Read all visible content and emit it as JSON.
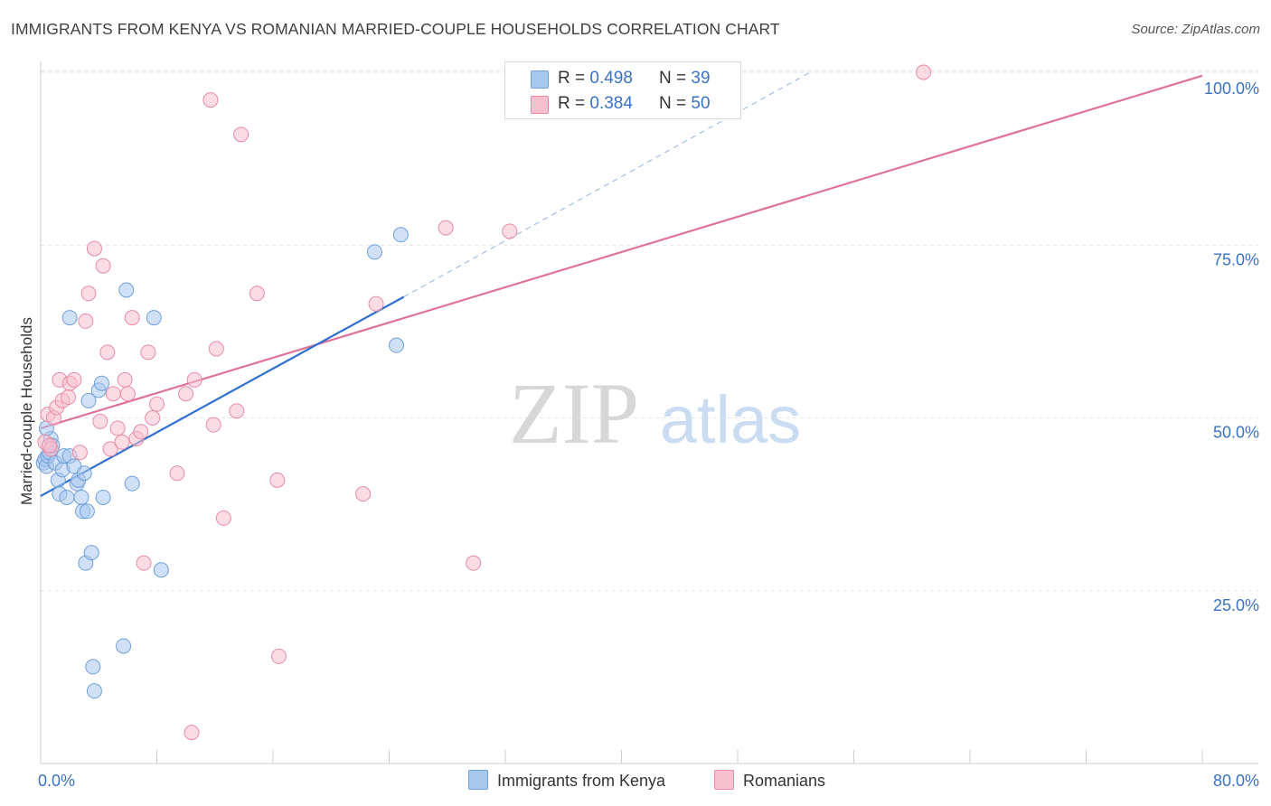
{
  "title": "IMMIGRANTS FROM KENYA VS ROMANIAN MARRIED-COUPLE HOUSEHOLDS CORRELATION CHART",
  "source": "Source: ZipAtlas.com",
  "watermark": {
    "zip": "ZIP",
    "atlas": "atlas"
  },
  "legend_top": [
    {
      "r_label": "R =",
      "r_value": "0.498",
      "n_label": "N =",
      "n_value": "39",
      "color": "#a9c8f0",
      "border": "#6f9fd8"
    },
    {
      "r_label": "R =",
      "r_value": "0.384",
      "n_label": "N =",
      "n_value": "50",
      "color": "#f7c0cf",
      "border": "#e88aa5"
    }
  ],
  "legend_bottom": [
    {
      "label": "Immigrants from Kenya",
      "color": "#a9c8f0",
      "border": "#6f9fd8"
    },
    {
      "label": "Romanians",
      "color": "#f7c0cf",
      "border": "#e88aa5"
    }
  ],
  "chart_data": {
    "type": "scatter",
    "title": "IMMIGRANTS FROM KENYA VS ROMANIAN MARRIED-COUPLE HOUSEHOLDS CORRELATION CHART",
    "xlabel": "",
    "ylabel": "Married-couple Households",
    "xlim": [
      0,
      80
    ],
    "ylim": [
      0,
      100
    ],
    "x_tick_labels": [
      "0.0%",
      "80.0%"
    ],
    "y_ticks": [
      25,
      50,
      75,
      100
    ],
    "y_tick_labels": [
      "25.0%",
      "50.0%",
      "75.0%",
      "100.0%"
    ],
    "grid": "horizontal dashed",
    "legend": "bottom-center",
    "series": [
      {
        "name": "Immigrants from Kenya",
        "color": "#6f9fd8",
        "fill": "#a9c8f0",
        "line_color": "#2e6fd0",
        "trend": {
          "x0": 0,
          "y0": 38.7,
          "x1": 25,
          "y1": 67.5,
          "dashed_to_x": 53,
          "dashed_to_y": 100
        },
        "points": [
          [
            0.2,
            43.5
          ],
          [
            0.3,
            44.0
          ],
          [
            0.4,
            43.0
          ],
          [
            0.5,
            44.5
          ],
          [
            0.6,
            45.0
          ],
          [
            0.7,
            47.0
          ],
          [
            0.8,
            46.0
          ],
          [
            1.0,
            43.5
          ],
          [
            1.2,
            41.0
          ],
          [
            1.3,
            39.0
          ],
          [
            1.5,
            42.5
          ],
          [
            1.6,
            44.5
          ],
          [
            1.8,
            38.5
          ],
          [
            2.0,
            44.5
          ],
          [
            2.0,
            64.5
          ],
          [
            2.3,
            43.0
          ],
          [
            2.5,
            40.5
          ],
          [
            2.6,
            41.0
          ],
          [
            2.8,
            38.5
          ],
          [
            2.9,
            36.5
          ],
          [
            3.0,
            42.0
          ],
          [
            3.1,
            29.0
          ],
          [
            3.2,
            36.5
          ],
          [
            3.3,
            52.5
          ],
          [
            3.5,
            30.5
          ],
          [
            3.6,
            14.0
          ],
          [
            3.7,
            10.5
          ],
          [
            4.0,
            54.0
          ],
          [
            4.2,
            55.0
          ],
          [
            4.3,
            38.5
          ],
          [
            5.7,
            17.0
          ],
          [
            5.9,
            68.5
          ],
          [
            6.3,
            40.5
          ],
          [
            7.8,
            64.5
          ],
          [
            8.3,
            28.0
          ],
          [
            23.0,
            74.0
          ],
          [
            24.5,
            60.5
          ],
          [
            24.8,
            76.5
          ],
          [
            0.4,
            48.5
          ]
        ]
      },
      {
        "name": "Romanians",
        "color": "#e88aa5",
        "fill": "#f7c0cf",
        "line_color": "#e0719a",
        "trend": {
          "x0": 0,
          "y0": 48.5,
          "x1": 80,
          "y1": 99.5
        },
        "points": [
          [
            0.3,
            46.5
          ],
          [
            0.5,
            50.5
          ],
          [
            0.7,
            45.5
          ],
          [
            0.9,
            50.0
          ],
          [
            1.1,
            51.5
          ],
          [
            1.3,
            55.5
          ],
          [
            1.5,
            52.5
          ],
          [
            1.9,
            53.0
          ],
          [
            2.0,
            55.0
          ],
          [
            2.3,
            55.5
          ],
          [
            2.7,
            45.0
          ],
          [
            3.1,
            64.0
          ],
          [
            3.3,
            68.0
          ],
          [
            3.7,
            74.5
          ],
          [
            4.1,
            49.5
          ],
          [
            4.3,
            72.0
          ],
          [
            4.6,
            59.5
          ],
          [
            4.8,
            45.5
          ],
          [
            5.0,
            53.5
          ],
          [
            5.3,
            48.5
          ],
          [
            5.6,
            46.5
          ],
          [
            5.8,
            55.5
          ],
          [
            6.0,
            53.5
          ],
          [
            6.3,
            64.5
          ],
          [
            6.6,
            47.0
          ],
          [
            6.9,
            48.0
          ],
          [
            7.1,
            29.0
          ],
          [
            7.4,
            59.5
          ],
          [
            7.7,
            50.0
          ],
          [
            8.0,
            52.0
          ],
          [
            9.4,
            42.0
          ],
          [
            10.0,
            53.5
          ],
          [
            10.4,
            4.5
          ],
          [
            10.6,
            55.5
          ],
          [
            11.7,
            96.0
          ],
          [
            11.9,
            49.0
          ],
          [
            12.1,
            60.0
          ],
          [
            12.6,
            35.5
          ],
          [
            13.5,
            51.0
          ],
          [
            13.8,
            91.0
          ],
          [
            14.9,
            68.0
          ],
          [
            16.3,
            41.0
          ],
          [
            16.4,
            15.5
          ],
          [
            22.2,
            39.0
          ],
          [
            23.1,
            66.5
          ],
          [
            27.9,
            77.5
          ],
          [
            29.8,
            29.0
          ],
          [
            32.3,
            77.0
          ],
          [
            60.8,
            100.0
          ],
          [
            0.6,
            46.0
          ]
        ]
      }
    ]
  }
}
